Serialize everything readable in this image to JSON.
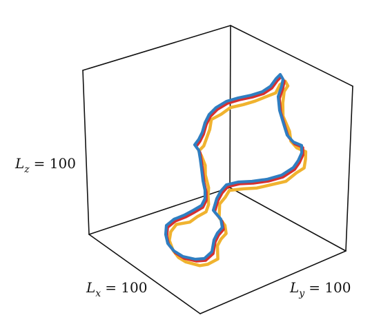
{
  "chart_data": {
    "type": "line",
    "projection": "3d",
    "grid": false,
    "title": "",
    "axis_labels": {
      "x": {
        "name": "L",
        "subscript": "x",
        "eq": "= 100"
      },
      "y": {
        "name": "L",
        "subscript": "y",
        "eq": "= 100"
      },
      "z": {
        "name": "L",
        "subscript": "z",
        "eq": "= 100"
      }
    },
    "xlim": [
      0,
      100
    ],
    "ylim": [
      0,
      100
    ],
    "zlim": [
      0,
      100
    ],
    "series": [
      {
        "color": "#f0b32f",
        "width": 4.5,
        "rough": true
      },
      {
        "color": "#d62f2f",
        "width": 3.6,
        "rough": false
      },
      {
        "color": "#2f7ec1",
        "width": 4.2,
        "rough": false
      }
    ]
  }
}
